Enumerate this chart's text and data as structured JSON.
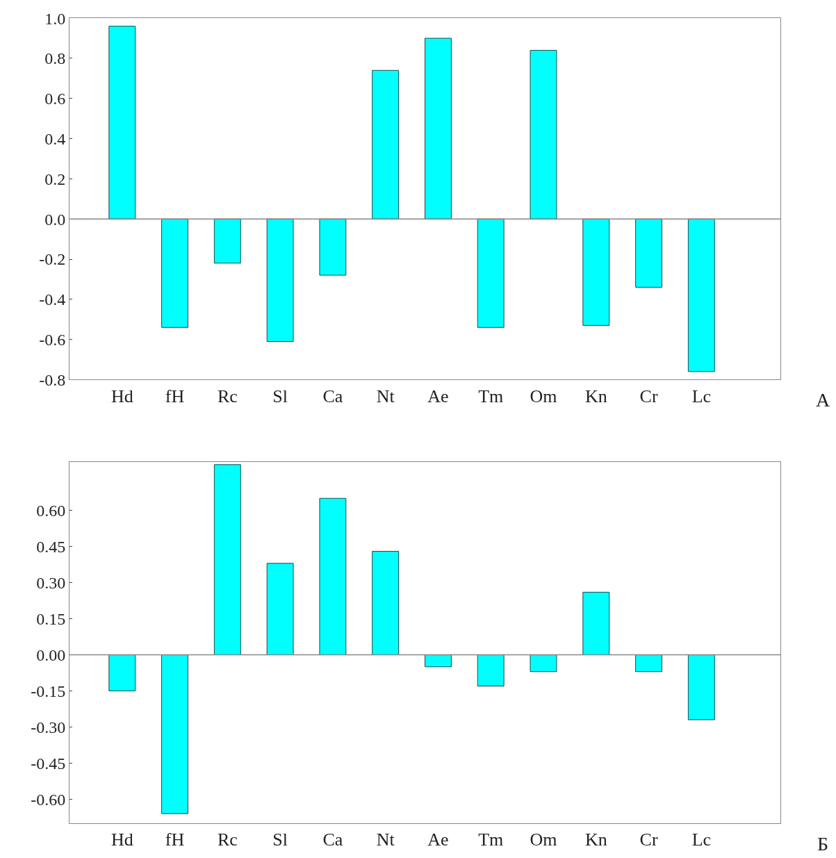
{
  "chart_data": [
    {
      "type": "bar",
      "categories": [
        "Hd",
        "fH",
        "Rc",
        "Sl",
        "Ca",
        "Nt",
        "Ae",
        "Tm",
        "Om",
        "Kn",
        "Cr",
        "Lc"
      ],
      "series": [
        {
          "color": "#00ffff",
          "values": [
            0.96,
            -0.54,
            -0.22,
            -0.61,
            -0.28,
            0.74,
            0.9,
            -0.54,
            0.84,
            -0.53,
            -0.34,
            -0.76
          ]
        }
      ],
      "ylim": [
        -0.8,
        1.0
      ],
      "yticks": [
        {
          "value": -0.8,
          "label": "-0.8"
        },
        {
          "value": -0.6,
          "label": "-0.6"
        },
        {
          "value": -0.4,
          "label": "-0.4"
        },
        {
          "value": -0.2,
          "label": "-0.2"
        },
        {
          "value": 0,
          "label": "0.0"
        },
        0.2,
        0.4,
        0.6,
        0.8,
        {
          "value": 1,
          "label": "1.0"
        }
      ],
      "ref_lines": [
        {
          "axis": "y",
          "value": 0,
          "color": "#888888"
        }
      ],
      "annotations": [
        "А"
      ]
    },
    {
      "type": "bar",
      "categories": [
        "Hd",
        "fH",
        "Rc",
        "Sl",
        "Ca",
        "Nt",
        "Ae",
        "Tm",
        "Om",
        "Kn",
        "Cr",
        "Lc"
      ],
      "series": [
        {
          "color": "#00ffff",
          "values": [
            -0.15,
            -0.66,
            0.79,
            0.38,
            0.65,
            0.43,
            -0.05,
            -0.13,
            -0.07,
            0.26,
            -0.07,
            -0.27
          ]
        }
      ],
      "ylim": [
        -0.7,
        0.8
      ],
      "yticks": [
        {
          "value": -0.6,
          "label": "-0.60"
        },
        {
          "value": -0.45,
          "label": "-0.45"
        },
        {
          "value": -0.3,
          "label": "-0.30"
        },
        {
          "value": -0.15,
          "label": "-0.15"
        },
        {
          "value": 0,
          "label": "0.00"
        },
        {
          "value": 0.15,
          "label": "0.15"
        },
        {
          "value": 0.3,
          "label": "0.30"
        },
        {
          "value": 0.45,
          "label": "0.45"
        },
        {
          "value": 0.6,
          "label": "0.60"
        }
      ],
      "ref_lines": [
        {
          "axis": "y",
          "value": 0,
          "color": "#888888"
        }
      ],
      "annotations": [
        "Б"
      ]
    }
  ]
}
